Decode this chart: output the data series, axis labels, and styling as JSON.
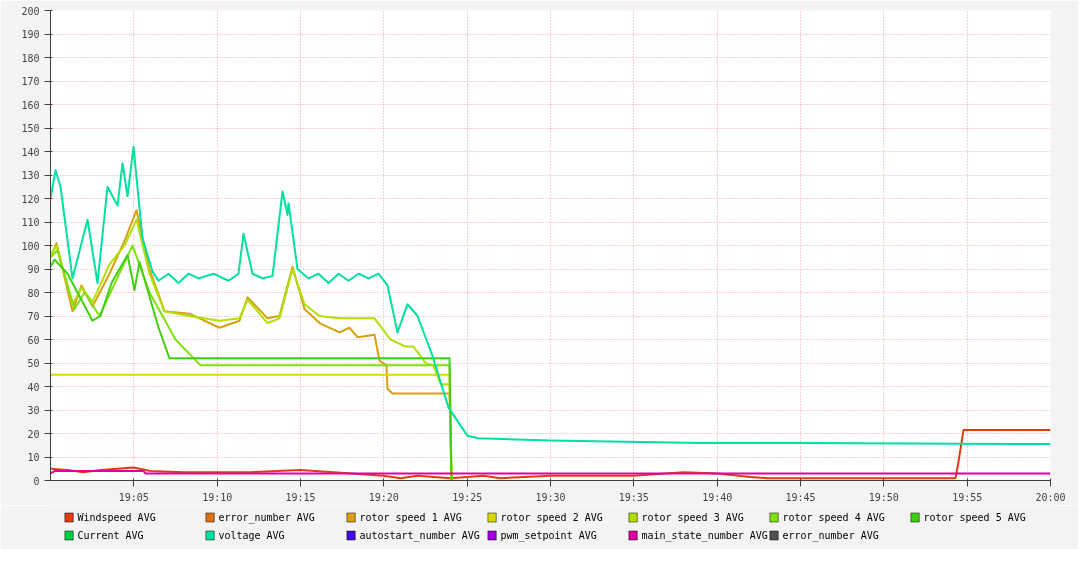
{
  "chart_data": {
    "type": "line",
    "xlim": [
      19.0,
      20.0
    ],
    "ylim": [
      0,
      200
    ],
    "xticks": [
      {
        "value": 19.0833,
        "label": "19:05"
      },
      {
        "value": 19.1667,
        "label": "19:10"
      },
      {
        "value": 19.25,
        "label": "19:15"
      },
      {
        "value": 19.3333,
        "label": "19:20"
      },
      {
        "value": 19.4167,
        "label": "19:25"
      },
      {
        "value": 19.5,
        "label": "19:30"
      },
      {
        "value": 19.5833,
        "label": "19:35"
      },
      {
        "value": 19.6667,
        "label": "19:40"
      },
      {
        "value": 19.75,
        "label": "19:45"
      },
      {
        "value": 19.8333,
        "label": "19:50"
      },
      {
        "value": 19.9167,
        "label": "19:55"
      },
      {
        "value": 20.0,
        "label": "20:00"
      }
    ],
    "yticks": [
      0,
      10,
      20,
      30,
      40,
      50,
      60,
      70,
      80,
      90,
      100,
      110,
      120,
      130,
      140,
      150,
      160,
      170,
      180,
      190,
      200
    ],
    "grid": true,
    "legend": "bottom",
    "marker": "none",
    "line_style": "solid",
    "series": [
      {
        "name": "Windspeed AVG",
        "color": "#e03c10",
        "x": [
          19.0,
          19.017,
          19.033,
          19.05,
          19.067,
          19.083,
          19.1,
          19.133,
          19.2,
          19.25,
          19.283,
          19.333,
          19.35,
          19.367,
          19.4,
          19.433,
          19.45,
          19.5,
          19.583,
          19.633,
          19.667,
          19.7,
          19.717,
          19.905,
          19.908,
          19.913,
          20.0
        ],
        "values": [
          5,
          4.5,
          3.5,
          4.5,
          5,
          5.5,
          4,
          3.5,
          3.5,
          4.5,
          3.5,
          2,
          1,
          2,
          1,
          2,
          1,
          2,
          2,
          3.5,
          3,
          1.5,
          1,
          1,
          8,
          21.5,
          21.5
        ]
      },
      {
        "name": "error_number AVG",
        "color": "#e07010"
      },
      {
        "name": "rotor speed 1 AVG",
        "color": "#d8a010",
        "x": [
          19.0,
          19.006,
          19.022,
          19.031,
          19.042,
          19.059,
          19.074,
          19.086,
          19.099,
          19.114,
          19.139,
          19.169,
          19.189,
          19.197,
          19.217,
          19.229,
          19.242,
          19.254,
          19.269,
          19.289,
          19.299,
          19.307,
          19.324,
          19.329,
          19.336,
          19.337,
          19.342,
          19.399,
          19.401
        ],
        "values": [
          95,
          101,
          72,
          83,
          74,
          88,
          102,
          115,
          90,
          72,
          71,
          65,
          68,
          78,
          69,
          70,
          91,
          73,
          67,
          63,
          65,
          61,
          62,
          51,
          49,
          39,
          37,
          37,
          0
        ]
      },
      {
        "name": "rotor speed 2 AVG",
        "color": "#d8d800",
        "x": [
          19.0,
          19.399,
          19.401
        ],
        "values": [
          45,
          45,
          0
        ]
      },
      {
        "name": "rotor speed 3 AVG",
        "color": "#b0e000",
        "x": [
          19.0,
          19.006,
          19.022,
          19.031,
          19.042,
          19.059,
          19.074,
          19.086,
          19.099,
          19.114,
          19.139,
          19.169,
          19.189,
          19.197,
          19.217,
          19.229,
          19.242,
          19.254,
          19.269,
          19.289,
          19.324,
          19.34,
          19.355,
          19.363,
          19.375,
          19.383,
          19.39,
          19.399,
          19.401
        ],
        "values": [
          96,
          100,
          75,
          82,
          76,
          92,
          100,
          111,
          88,
          72,
          70,
          68,
          69,
          77,
          67,
          69,
          90,
          75,
          70,
          69,
          69,
          60,
          57,
          57,
          50,
          49,
          41,
          41,
          0
        ]
      },
      {
        "name": "rotor speed 4 AVG",
        "color": "#80e010",
        "x": [
          19.0,
          19.007,
          19.024,
          19.034,
          19.049,
          19.082,
          19.099,
          19.125,
          19.15,
          19.399,
          19.401
        ],
        "values": [
          95,
          98,
          73,
          80,
          70,
          100,
          80,
          60,
          49,
          49,
          0
        ]
      },
      {
        "name": "rotor speed 5 AVG",
        "color": "#40d010",
        "x": [
          19.0,
          19.004,
          19.017,
          19.042,
          19.05,
          19.061,
          19.077,
          19.084,
          19.089,
          19.108,
          19.119,
          19.399,
          19.401
        ],
        "values": [
          91,
          94,
          88,
          68,
          70,
          84,
          96,
          81,
          93,
          65,
          52,
          52,
          0
        ]
      },
      {
        "name": "Current AVG",
        "color": "#00d040"
      },
      {
        "name": "voltage AVG",
        "color": "#00e0a0",
        "x": [
          19.0,
          19.005,
          19.01,
          19.022,
          19.037,
          19.047,
          19.057,
          19.067,
          19.072,
          19.077,
          19.083,
          19.092,
          19.102,
          19.108,
          19.118,
          19.128,
          19.138,
          19.148,
          19.163,
          19.178,
          19.188,
          19.193,
          19.202,
          19.212,
          19.222,
          19.232,
          19.237,
          19.238,
          19.247,
          19.258,
          19.268,
          19.278,
          19.288,
          19.298,
          19.308,
          19.318,
          19.328,
          19.337,
          19.347,
          19.357,
          19.367,
          19.382,
          19.398,
          19.417,
          19.428,
          19.5,
          19.65,
          19.75,
          20.0
        ],
        "values": [
          120,
          132,
          125,
          86,
          111,
          84,
          125,
          117,
          135,
          121,
          142,
          103,
          89,
          85,
          88,
          84,
          88,
          86,
          88,
          85,
          88,
          105,
          88,
          86,
          87,
          123,
          113,
          118,
          90,
          86,
          88,
          84,
          88,
          85,
          88,
          86,
          88,
          83,
          63,
          75,
          70,
          53,
          31,
          19,
          18,
          17,
          16,
          16,
          15.5
        ]
      },
      {
        "name": "autostart_number AVG",
        "color": "#4010e0"
      },
      {
        "name": "pwm_setpoint AVG",
        "color": "#a000e0"
      },
      {
        "name": "main_state_number AVG",
        "color": "#e000a0",
        "x": [
          19.0,
          19.004,
          19.093,
          19.095,
          20.0
        ],
        "values": [
          3,
          4,
          4,
          3,
          3
        ]
      },
      {
        "name": "error_number AVG",
        "color": "#505050"
      }
    ]
  }
}
